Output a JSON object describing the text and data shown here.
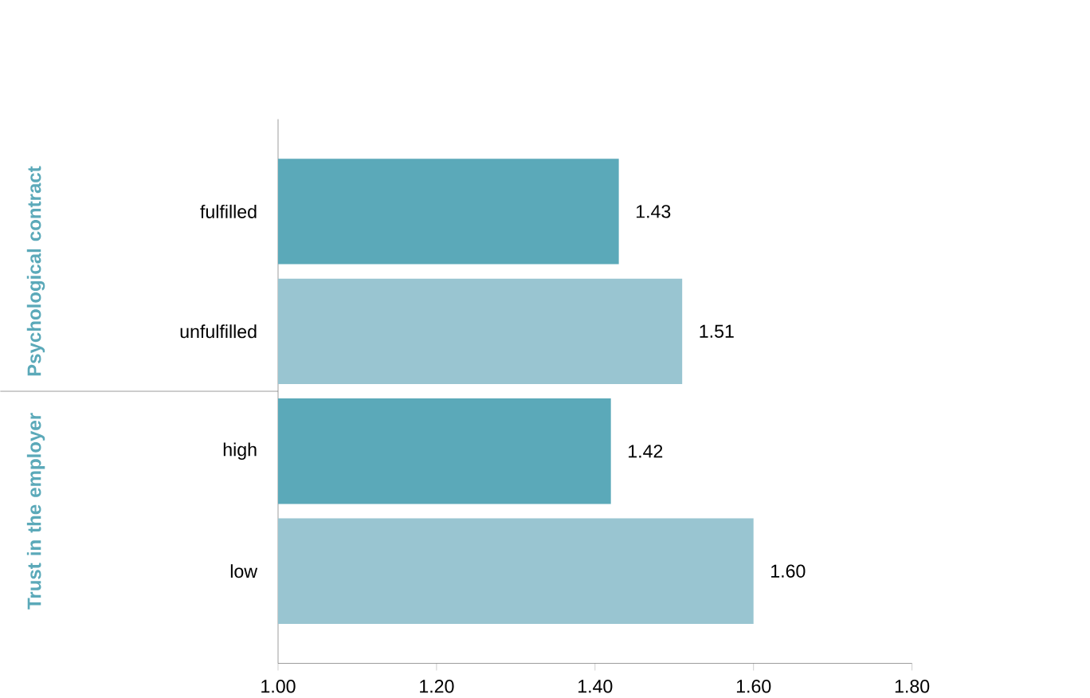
{
  "chart_data": {
    "type": "bar",
    "orientation": "horizontal",
    "categories": [
      "fulfilled",
      "unfulfilled",
      "high",
      "low"
    ],
    "values": [
      1.43,
      1.51,
      1.42,
      1.6
    ],
    "value_labels": [
      "1.43",
      "1.51",
      "1.42",
      "1.60"
    ],
    "colors": [
      "#5ba9b9",
      "#99c5d1",
      "#5ba9b9",
      "#99c5d1"
    ],
    "xlim": [
      1.0,
      1.8
    ],
    "xticks": [
      {
        "value": 1.0,
        "label": "1.00"
      },
      {
        "value": 1.2,
        "label": "1.20"
      },
      {
        "value": 1.4,
        "label": "1.40"
      },
      {
        "value": 1.6,
        "label": "1.60"
      },
      {
        "value": 1.8,
        "label": "1.80"
      }
    ],
    "annotations": [
      "Psychological contract",
      "Trust in the employer"
    ],
    "grid": false
  }
}
